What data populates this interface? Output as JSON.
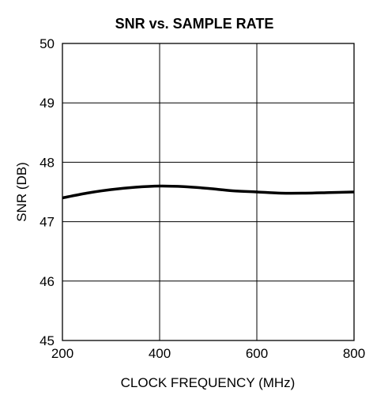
{
  "chart_data": {
    "type": "line",
    "title": "SNR vs. SAMPLE RATE",
    "xlabel": "CLOCK FREQUENCY (MHz)",
    "ylabel": "SNR (DB)",
    "xlim": [
      200,
      800
    ],
    "ylim": [
      45,
      50
    ],
    "x_ticks": [
      "200",
      "400",
      "600",
      "800"
    ],
    "y_ticks": [
      "45",
      "46",
      "47",
      "48",
      "49",
      "50"
    ],
    "grid": true,
    "series": [
      {
        "x": [
          200,
          250,
          300,
          350,
          400,
          450,
          500,
          550,
          600,
          650,
          700,
          750,
          800
        ],
        "y": [
          47.4,
          47.48,
          47.54,
          47.58,
          47.6,
          47.59,
          47.56,
          47.52,
          47.5,
          47.48,
          47.48,
          47.49,
          47.5
        ]
      }
    ],
    "line_color": "#000000"
  }
}
